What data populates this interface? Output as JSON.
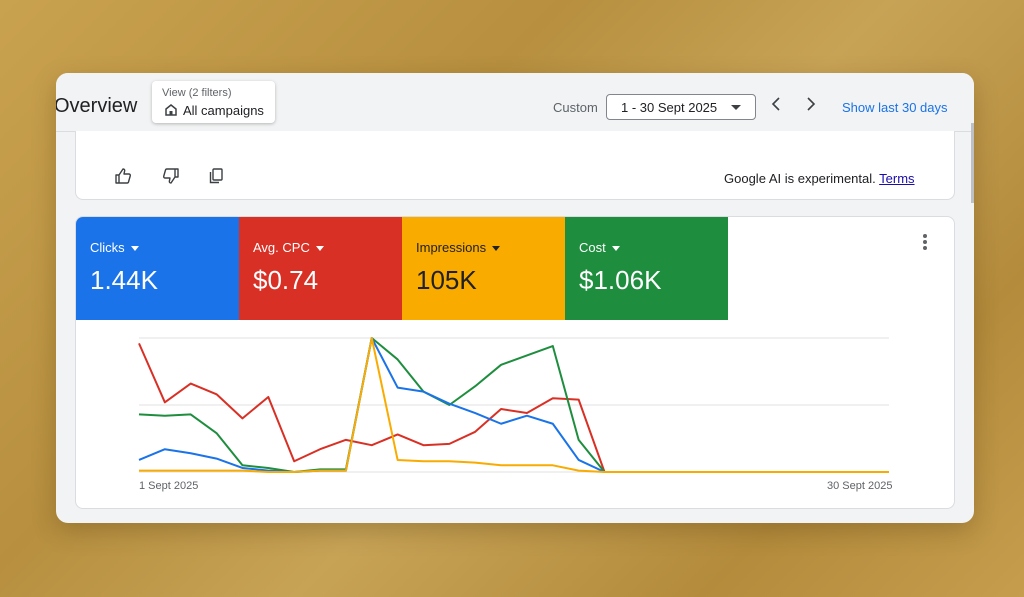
{
  "header": {
    "title": "Overview",
    "view_filters_label": "View (2 filters)",
    "view_value": "All campaigns",
    "date_mode": "Custom",
    "date_range": "1 - 30 Sept 2025",
    "show_last_label": "Show last 30 days"
  },
  "ai_card": {
    "note": "Google AI is experimental.",
    "terms_link": "Terms"
  },
  "metrics": [
    {
      "label": "Clicks",
      "value": "1.44K",
      "color": "#1a73e8"
    },
    {
      "label": "Avg. CPC",
      "value": "$0.74",
      "color": "#d93025"
    },
    {
      "label": "Impressions",
      "value": "105K",
      "color": "#f9ab00"
    },
    {
      "label": "Cost",
      "value": "$1.06K",
      "color": "#1e8e3e"
    }
  ],
  "chart_data": {
    "type": "line",
    "x": [
      1,
      2,
      3,
      4,
      5,
      6,
      7,
      8,
      9,
      10,
      11,
      12,
      13,
      14,
      15,
      16,
      17,
      18,
      19,
      20,
      21,
      22,
      23,
      24,
      25,
      26,
      27,
      28,
      29,
      30
    ],
    "x_start_label": "1 Sept 2025",
    "x_end_label": "30 Sept 2025",
    "ylim": [
      0,
      100
    ],
    "grid": true,
    "series": [
      {
        "color": "#d93025",
        "values": [
          96,
          52,
          66,
          58,
          40,
          56,
          8,
          17,
          24,
          20,
          28,
          20,
          21,
          30,
          47,
          44,
          55,
          54,
          0,
          0,
          0,
          0,
          0,
          0,
          0,
          0,
          0,
          0,
          0,
          0
        ]
      },
      {
        "color": "#1e8e3e",
        "values": [
          43,
          42,
          43,
          29,
          5,
          3,
          0,
          2,
          2,
          100,
          84,
          60,
          50,
          64,
          80,
          87,
          94,
          24,
          0,
          0,
          0,
          0,
          0,
          0,
          0,
          0,
          0,
          0,
          0,
          0
        ]
      },
      {
        "color": "#1a73e8",
        "values": [
          9,
          17,
          14,
          10,
          3,
          1,
          0,
          1,
          1,
          100,
          63,
          60,
          51,
          44,
          36,
          42,
          36,
          9,
          0,
          0,
          0,
          0,
          0,
          0,
          0,
          0,
          0,
          0,
          0,
          0
        ]
      },
      {
        "color": "#f9ab00",
        "values": [
          1,
          1,
          1,
          1,
          1,
          0,
          0,
          1,
          1,
          100,
          9,
          8,
          8,
          7,
          5,
          5,
          5,
          1,
          0,
          0,
          0,
          0,
          0,
          0,
          0,
          0,
          0,
          0,
          0,
          0
        ]
      }
    ]
  }
}
